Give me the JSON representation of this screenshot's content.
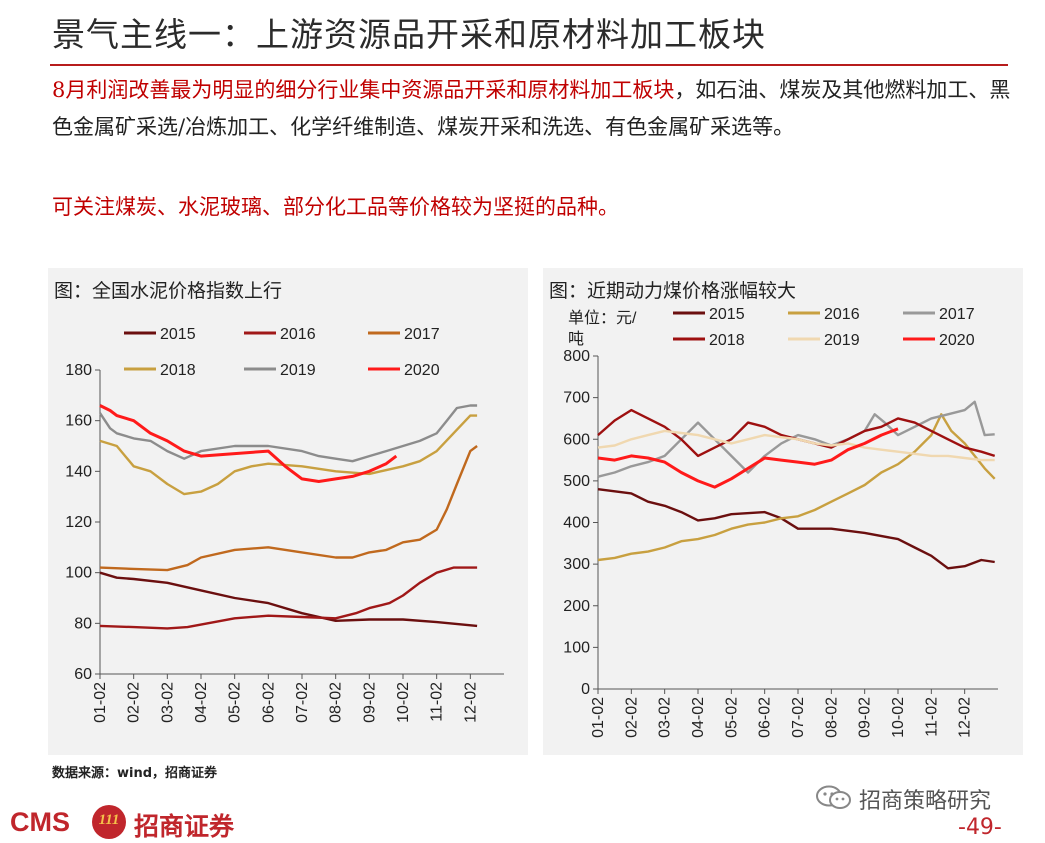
{
  "page": {
    "title": "景气主线一：上游资源品开采和原材料加工板块",
    "para1_highlight": "8月利润改善最为明显的细分行业集中资源品开采和原材料加工板块",
    "para1_rest": "，如石油、煤炭及其他燃料加工、黑色金属矿采选/冶炼加工、化学纤维制造、煤炭开采和洗选、有色金属矿采选等。",
    "para2": "可关注煤炭、水泥玻璃、部分化工品等价格较为坚挺的品种。",
    "source": "数据来源：wind，招商证券",
    "wechat": "招商策略研究",
    "page_number": "-49-",
    "logo": {
      "cms": "CMS",
      "badge": "111",
      "name": "招商证券"
    }
  },
  "colors": {
    "2015": "#6b0f0f",
    "2016": "#a01818",
    "2017": "#c0691e",
    "2018": "#c8a040",
    "2019": "#8c8c8c",
    "2020": "#ff1a1a",
    "coal_2015": "#6b0f0f",
    "coal_2016": "#c8a040",
    "coal_2017": "#999999",
    "coal_2018": "#9e1010",
    "coal_2019": "#f0d8b0",
    "coal_2020": "#ff1a1a"
  },
  "chart_data": [
    {
      "type": "line",
      "panel_title": "图：全国水泥价格指数上行",
      "x": [
        "01-02",
        "02-02",
        "03-02",
        "04-02",
        "05-02",
        "06-02",
        "07-02",
        "08-02",
        "09-02",
        "10-02",
        "11-02",
        "12-02"
      ],
      "ylim": [
        60,
        180
      ],
      "yticks": [
        60,
        80,
        100,
        120,
        140,
        160,
        180
      ],
      "legend": [
        "2015",
        "2016",
        "2017",
        "2018",
        "2019",
        "2020"
      ],
      "series": [
        {
          "name": "2015",
          "x": [
            1,
            1.5,
            2,
            3,
            4,
            5,
            6,
            7,
            8,
            9,
            10,
            11,
            12.2
          ],
          "values": [
            100,
            98,
            97.5,
            96,
            93,
            90,
            88,
            84,
            81,
            81.5,
            81.5,
            80.5,
            79
          ]
        },
        {
          "name": "2016",
          "x": [
            1,
            2,
            3,
            3.6,
            4.2,
            5,
            6,
            7,
            8,
            8.6,
            9,
            9.6,
            10,
            10.5,
            11,
            11.5,
            12,
            12.2
          ],
          "values": [
            79,
            78.5,
            78,
            78.5,
            80,
            82,
            83,
            82.5,
            82,
            84,
            86,
            88,
            91,
            96,
            100,
            102,
            102,
            102
          ]
        },
        {
          "name": "2017",
          "x": [
            1,
            2,
            3,
            3.6,
            4,
            5,
            6,
            7,
            8,
            8.5,
            9,
            9.5,
            10,
            10.5,
            11,
            11.3,
            11.6,
            12,
            12.2
          ],
          "values": [
            102,
            101.5,
            101,
            103,
            106,
            109,
            110,
            108,
            106,
            106,
            108,
            109,
            112,
            113,
            117,
            125,
            135,
            148,
            150
          ]
        },
        {
          "name": "2018",
          "x": [
            1,
            1.5,
            2,
            2.5,
            3,
            3.5,
            4,
            4.5,
            5,
            5.5,
            6,
            7,
            8,
            9,
            10,
            10.5,
            11,
            11.5,
            12,
            12.2
          ],
          "values": [
            152,
            150,
            142,
            140,
            135,
            131,
            132,
            135,
            140,
            142,
            143,
            142,
            140,
            139,
            142,
            144,
            148,
            155,
            162,
            162
          ]
        },
        {
          "name": "2019",
          "x": [
            1,
            1.3,
            1.5,
            2,
            2.5,
            3,
            3.5,
            4,
            5,
            6,
            7,
            7.5,
            8,
            8.5,
            9,
            9.5,
            10,
            10.5,
            11,
            11.3,
            11.6,
            12,
            12.2
          ],
          "values": [
            163,
            157,
            155,
            153,
            152,
            148,
            145,
            148,
            150,
            150,
            148,
            146,
            145,
            144,
            146,
            148,
            150,
            152,
            155,
            160,
            165,
            166,
            166
          ]
        },
        {
          "name": "2020",
          "x": [
            1,
            1.3,
            1.5,
            2,
            2.5,
            3,
            3.5,
            4,
            5,
            6,
            6.5,
            7,
            7.5,
            8,
            8.5,
            9,
            9.5,
            9.8
          ],
          "values": [
            166,
            164,
            162,
            160,
            155,
            152,
            148,
            146,
            147,
            148,
            142,
            137,
            136,
            137,
            138,
            140,
            143,
            146
          ]
        }
      ]
    },
    {
      "type": "line",
      "panel_title": "图：近期动力煤价格涨幅较大",
      "ylabel": "单位：元/吨",
      "x": [
        "01-02",
        "02-02",
        "03-02",
        "04-02",
        "05-02",
        "06-02",
        "07-02",
        "08-02",
        "09-02",
        "10-02",
        "11-02",
        "12-02"
      ],
      "ylim": [
        0,
        800
      ],
      "yticks": [
        0,
        100,
        200,
        300,
        400,
        500,
        600,
        700,
        800
      ],
      "legend": [
        "2015",
        "2016",
        "2017",
        "2018",
        "2019",
        "2020"
      ],
      "series": [
        {
          "name": "2015",
          "x": [
            1,
            2,
            2.5,
            3,
            3.5,
            4,
            4.5,
            5,
            6,
            6.5,
            7,
            8,
            9,
            10,
            10.5,
            11,
            11.5,
            12,
            12.5,
            12.9
          ],
          "values": [
            480,
            470,
            450,
            440,
            425,
            405,
            410,
            420,
            425,
            410,
            385,
            385,
            375,
            360,
            340,
            320,
            290,
            295,
            310,
            305
          ]
        },
        {
          "name": "2016",
          "x": [
            1,
            1.5,
            2,
            2.5,
            3,
            3.5,
            4,
            4.5,
            5,
            5.5,
            6,
            6.5,
            7,
            7.5,
            8,
            8.5,
            9,
            9.5,
            10,
            10.5,
            11,
            11.3,
            11.6,
            12,
            12.3,
            12.6,
            12.9
          ],
          "values": [
            310,
            315,
            325,
            330,
            340,
            355,
            360,
            370,
            385,
            395,
            400,
            410,
            415,
            430,
            450,
            470,
            490,
            520,
            540,
            570,
            610,
            660,
            620,
            590,
            560,
            530,
            505
          ]
        },
        {
          "name": "2017",
          "x": [
            1,
            1.5,
            2,
            2.5,
            3,
            3.5,
            4,
            4.5,
            5,
            5.5,
            6,
            6.5,
            7,
            7.5,
            8,
            8.5,
            9,
            9.3,
            9.6,
            10,
            10.5,
            11,
            11.5,
            12,
            12.3,
            12.6,
            12.9
          ],
          "values": [
            510,
            520,
            535,
            545,
            560,
            600,
            640,
            600,
            560,
            520,
            560,
            590,
            610,
            600,
            585,
            600,
            620,
            660,
            640,
            610,
            630,
            650,
            660,
            670,
            690,
            610,
            612
          ]
        },
        {
          "name": "2018",
          "x": [
            1,
            1.5,
            2,
            2.5,
            3,
            3.5,
            4,
            4.5,
            5,
            5.5,
            6,
            6.5,
            7,
            7.5,
            8,
            8.5,
            9,
            9.5,
            10,
            10.5,
            11,
            11.5,
            12,
            12.5,
            12.9
          ],
          "values": [
            610,
            645,
            670,
            650,
            630,
            600,
            560,
            580,
            600,
            640,
            630,
            610,
            600,
            590,
            580,
            600,
            620,
            630,
            650,
            640,
            620,
            600,
            580,
            570,
            560
          ]
        },
        {
          "name": "2019",
          "x": [
            1,
            1.5,
            2,
            2.5,
            3,
            3.5,
            4,
            4.5,
            5,
            5.5,
            6,
            6.5,
            7,
            7.5,
            8,
            8.5,
            9,
            9.5,
            10,
            10.5,
            11,
            11.5,
            12,
            12.5,
            12.9
          ],
          "values": [
            580,
            585,
            600,
            610,
            620,
            615,
            610,
            600,
            590,
            600,
            610,
            605,
            600,
            590,
            585,
            590,
            580,
            575,
            570,
            565,
            560,
            560,
            555,
            550,
            550
          ]
        },
        {
          "name": "2020",
          "x": [
            1,
            1.5,
            2,
            2.5,
            3,
            3.5,
            4,
            4.5,
            5,
            5.5,
            6,
            6.5,
            7,
            7.5,
            8,
            8.5,
            9,
            9.5,
            10
          ],
          "values": [
            555,
            550,
            560,
            555,
            545,
            520,
            500,
            485,
            505,
            530,
            555,
            550,
            545,
            540,
            550,
            575,
            590,
            610,
            625
          ]
        }
      ]
    }
  ]
}
